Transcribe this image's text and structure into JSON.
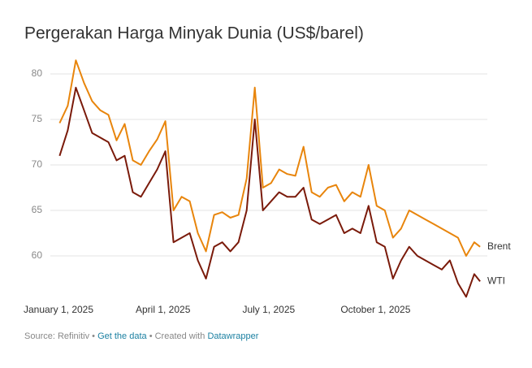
{
  "chart_data": {
    "type": "line",
    "title": "Pergerakan Harga Minyak Dunia (US$/barel)",
    "x": [
      "2025-01-02",
      "2025-01-09",
      "2025-01-16",
      "2025-01-23",
      "2025-01-30",
      "2025-02-06",
      "2025-02-13",
      "2025-02-20",
      "2025-02-27",
      "2025-03-06",
      "2025-03-13",
      "2025-03-20",
      "2025-03-27",
      "2025-04-03",
      "2025-04-10",
      "2025-04-17",
      "2025-04-24",
      "2025-05-01",
      "2025-05-08",
      "2025-05-15",
      "2025-05-22",
      "2025-05-29",
      "2025-06-05",
      "2025-06-12",
      "2025-06-19",
      "2025-06-26",
      "2025-07-03",
      "2025-07-10",
      "2025-07-17",
      "2025-07-24",
      "2025-07-31",
      "2025-08-07",
      "2025-08-14",
      "2025-08-21",
      "2025-08-28",
      "2025-09-04",
      "2025-09-11",
      "2025-09-18",
      "2025-09-25",
      "2025-10-02",
      "2025-10-09",
      "2025-10-16",
      "2025-10-23",
      "2025-10-30",
      "2025-11-06",
      "2025-11-13",
      "2025-11-20",
      "2025-11-27",
      "2025-12-04",
      "2025-12-11",
      "2025-12-18",
      "2025-12-25",
      "2025-12-30"
    ],
    "series": [
      {
        "name": "Brent",
        "color": "#e8850c",
        "values": [
          74.6,
          76.5,
          81.5,
          79.0,
          77.0,
          76.0,
          75.5,
          72.7,
          74.5,
          70.5,
          70.0,
          71.5,
          72.8,
          74.8,
          65.0,
          66.5,
          66.0,
          62.5,
          60.5,
          64.5,
          64.8,
          64.2,
          64.5,
          68.5,
          78.5,
          67.5,
          68.0,
          69.5,
          69.0,
          68.8,
          72.0,
          67.0,
          66.5,
          67.5,
          67.8,
          66.0,
          67.0,
          66.5,
          70.0,
          65.5,
          65.0,
          62.0,
          63.0,
          65.0,
          64.5,
          64.0,
          63.5,
          63.0,
          62.5,
          62.0,
          60.0,
          61.5,
          61.0
        ]
      },
      {
        "name": "WTI",
        "color": "#7a1a0a",
        "values": [
          71.0,
          73.8,
          78.5,
          76.0,
          73.5,
          73.0,
          72.5,
          70.5,
          71.0,
          67.0,
          66.5,
          68.0,
          69.5,
          71.5,
          61.5,
          62.0,
          62.5,
          59.5,
          57.5,
          61.0,
          61.5,
          60.5,
          61.5,
          65.0,
          75.0,
          65.0,
          66.0,
          67.0,
          66.5,
          66.5,
          67.5,
          64.0,
          63.5,
          64.0,
          64.5,
          62.5,
          63.0,
          62.5,
          65.5,
          61.5,
          61.0,
          57.5,
          59.5,
          61.0,
          60.0,
          59.5,
          59.0,
          58.5,
          59.5,
          57.0,
          55.5,
          58.0,
          57.2
        ]
      }
    ],
    "xlim": [
      "2025-01-01",
      "2025-12-31"
    ],
    "xticks": [
      {
        "value": "2025-01-01",
        "label": "January 1, 2025"
      },
      {
        "value": "2025-04-01",
        "label": "April 1, 2025"
      },
      {
        "value": "2025-07-01",
        "label": "July 1, 2025"
      },
      {
        "value": "2025-10-01",
        "label": "October 1, 2025"
      }
    ],
    "ylim": [
      55,
      82
    ],
    "yticks": [
      60,
      65,
      70,
      75,
      80
    ],
    "grid": true,
    "footer": {
      "source": "Source: Refinitiv",
      "separator": "•",
      "get_data": "Get the data",
      "created_with": "Created with",
      "tool": "Datawrapper"
    }
  }
}
